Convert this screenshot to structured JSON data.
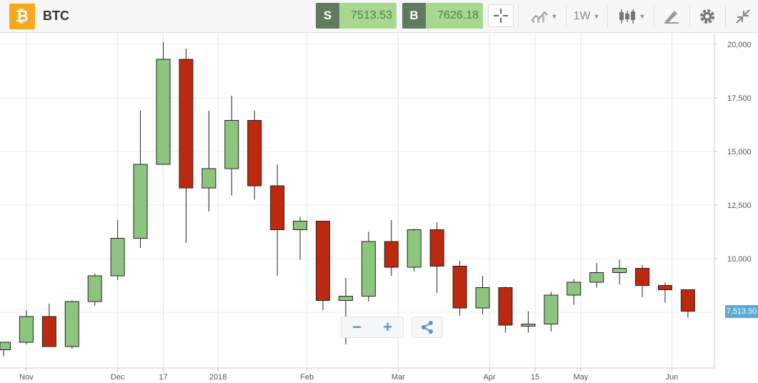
{
  "header": {
    "logo_glyph": "₿",
    "symbol": "BTC",
    "sell": {
      "tag": "S",
      "price": "7513.53"
    },
    "buy": {
      "tag": "B",
      "price": "7626.18"
    },
    "timeframe": "1W"
  },
  "colors": {
    "up": "#8ec57e",
    "down": "#bb2a0e",
    "price_label": "#5aa9d6",
    "sell_tag": "#617a5d",
    "buy_price_bg": "#a7d88f"
  },
  "icons": [
    "bitcoin-logo-icon",
    "crosshair-icon",
    "line-chart-type-icon",
    "candlestick-icon",
    "draw-pencil-icon",
    "gear-icon",
    "collapse-icon",
    "zoom-out-icon",
    "zoom-in-icon",
    "share-icon"
  ],
  "current_price_label": "7,513.50",
  "chart_data": {
    "type": "candlestick",
    "interval": "1W",
    "y_ticks": [
      20000,
      17500,
      15000,
      12500,
      10000
    ],
    "y_tick_labels": [
      "20,000",
      "17,500",
      "15,000",
      "12,500",
      "10,000"
    ],
    "ylim": [
      4500,
      20500
    ],
    "x_labels": [
      {
        "label": "Nov",
        "index": 1
      },
      {
        "label": "Dec",
        "index": 5
      },
      {
        "label": "17",
        "index": 7
      },
      {
        "label": "2018",
        "index": 9.4
      },
      {
        "label": "Feb",
        "index": 13.3
      },
      {
        "label": "Mar",
        "index": 17.3
      },
      {
        "label": "Apr",
        "index": 21.3
      },
      {
        "label": "15",
        "index": 23.3
      },
      {
        "label": "May",
        "index": 25.3
      },
      {
        "label": "Jun",
        "index": 29.3
      }
    ],
    "candles": [
      {
        "o": 5750,
        "h": 6100,
        "l": 5450,
        "c": 6100
      },
      {
        "o": 6100,
        "h": 7600,
        "l": 6000,
        "c": 7300
      },
      {
        "o": 7300,
        "h": 7900,
        "l": 5950,
        "c": 5900
      },
      {
        "o": 5900,
        "h": 8050,
        "l": 5800,
        "c": 8000
      },
      {
        "o": 8000,
        "h": 9300,
        "l": 7800,
        "c": 9200
      },
      {
        "o": 9200,
        "h": 11800,
        "l": 9000,
        "c": 10950
      },
      {
        "o": 10950,
        "h": 16900,
        "l": 10500,
        "c": 14400
      },
      {
        "o": 14400,
        "h": 20100,
        "l": 14400,
        "c": 19300
      },
      {
        "o": 19300,
        "h": 19800,
        "l": 10750,
        "c": 13300
      },
      {
        "o": 13300,
        "h": 16900,
        "l": 12200,
        "c": 14200
      },
      {
        "o": 14200,
        "h": 17600,
        "l": 12950,
        "c": 16450
      },
      {
        "o": 16450,
        "h": 16900,
        "l": 12750,
        "c": 13400
      },
      {
        "o": 13400,
        "h": 14400,
        "l": 9200,
        "c": 11350
      },
      {
        "o": 11350,
        "h": 11950,
        "l": 9950,
        "c": 11750
      },
      {
        "o": 11750,
        "h": 11750,
        "l": 7600,
        "c": 8050
      },
      {
        "o": 8050,
        "h": 9100,
        "l": 6000,
        "c": 8250
      },
      {
        "o": 8250,
        "h": 11250,
        "l": 8000,
        "c": 10800
      },
      {
        "o": 10800,
        "h": 11800,
        "l": 9200,
        "c": 9600
      },
      {
        "o": 9600,
        "h": 11400,
        "l": 9400,
        "c": 11350
      },
      {
        "o": 11350,
        "h": 11700,
        "l": 8400,
        "c": 9650
      },
      {
        "o": 9650,
        "h": 9900,
        "l": 7350,
        "c": 7700
      },
      {
        "o": 7700,
        "h": 9200,
        "l": 7400,
        "c": 8650
      },
      {
        "o": 8650,
        "h": 8700,
        "l": 6550,
        "c": 6900
      },
      {
        "o": 6850,
        "h": 7550,
        "l": 6550,
        "c": 6950
      },
      {
        "o": 6950,
        "h": 8450,
        "l": 6600,
        "c": 8300
      },
      {
        "o": 8300,
        "h": 9050,
        "l": 7850,
        "c": 8900
      },
      {
        "o": 8900,
        "h": 9800,
        "l": 8650,
        "c": 9350
      },
      {
        "o": 9350,
        "h": 9950,
        "l": 8800,
        "c": 9550
      },
      {
        "o": 9550,
        "h": 9700,
        "l": 8200,
        "c": 8750
      },
      {
        "o": 8750,
        "h": 8900,
        "l": 7950,
        "c": 8550
      },
      {
        "o": 8550,
        "h": 8550,
        "l": 7250,
        "c": 7550
      }
    ]
  }
}
